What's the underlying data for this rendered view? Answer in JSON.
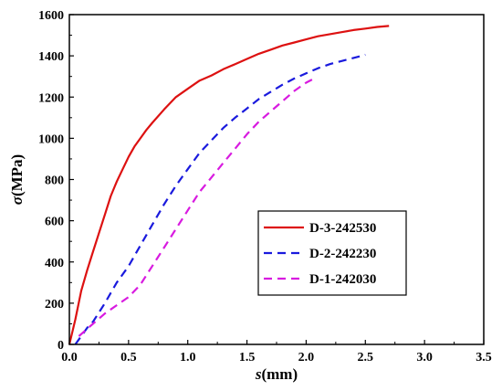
{
  "chart_data": {
    "type": "line",
    "title": "",
    "xlabel": {
      "symbol": "s",
      "unit": "(mm)"
    },
    "ylabel": {
      "symbol": "σ",
      "unit": "(MPa)"
    },
    "xlim": [
      0,
      3.5
    ],
    "ylim": [
      0,
      1600
    ],
    "xticks": [
      "0.0",
      "0.5",
      "1.0",
      "1.5",
      "2.0",
      "2.5",
      "3.0",
      "3.5"
    ],
    "yticks": [
      "0",
      "200",
      "400",
      "600",
      "800",
      "1000",
      "1200",
      "1400",
      "1600"
    ],
    "grid": false,
    "legend_position": "center-right",
    "series": [
      {
        "name": "D-3-242530",
        "color": "#dd1111",
        "dash": "solid",
        "x": [
          0,
          0.05,
          0.1,
          0.15,
          0.2,
          0.25,
          0.3,
          0.35,
          0.4,
          0.45,
          0.5,
          0.55,
          0.6,
          0.65,
          0.7,
          0.8,
          0.9,
          1.0,
          1.1,
          1.2,
          1.3,
          1.4,
          1.5,
          1.6,
          1.7,
          1.8,
          1.9,
          2.0,
          2.1,
          2.2,
          2.3,
          2.4,
          2.5,
          2.6,
          2.7
        ],
        "y": [
          0,
          120,
          260,
          360,
          450,
          540,
          630,
          720,
          790,
          850,
          910,
          960,
          1000,
          1040,
          1075,
          1140,
          1200,
          1240,
          1280,
          1305,
          1335,
          1360,
          1385,
          1410,
          1430,
          1450,
          1465,
          1480,
          1495,
          1505,
          1515,
          1525,
          1532,
          1540,
          1545
        ]
      },
      {
        "name": "D-2-242230",
        "color": "#1a1add",
        "dash": "dashed",
        "x": [
          0.05,
          0.1,
          0.15,
          0.2,
          0.3,
          0.4,
          0.5,
          0.6,
          0.7,
          0.8,
          0.9,
          1.0,
          1.1,
          1.2,
          1.3,
          1.4,
          1.5,
          1.6,
          1.7,
          1.8,
          1.9,
          2.0,
          2.1,
          2.2,
          2.3,
          2.4,
          2.5
        ],
        "y": [
          0,
          40,
          80,
          110,
          200,
          300,
          380,
          480,
          580,
          680,
          770,
          850,
          930,
          990,
          1050,
          1100,
          1145,
          1190,
          1225,
          1260,
          1290,
          1315,
          1340,
          1360,
          1375,
          1390,
          1405
        ]
      },
      {
        "name": "D-1-242030",
        "color": "#d81be0",
        "dash": "dashed",
        "x": [
          0.08,
          0.2,
          0.3,
          0.4,
          0.5,
          0.6,
          0.7,
          0.8,
          0.9,
          1.0,
          1.1,
          1.2,
          1.3,
          1.4,
          1.5,
          1.6,
          1.7,
          1.8,
          1.9,
          2.0,
          2.05
        ],
        "y": [
          40,
          100,
          150,
          190,
          230,
          290,
          380,
          470,
          560,
          650,
          740,
          810,
          880,
          950,
          1020,
          1080,
          1130,
          1180,
          1230,
          1270,
          1285
        ]
      }
    ]
  }
}
